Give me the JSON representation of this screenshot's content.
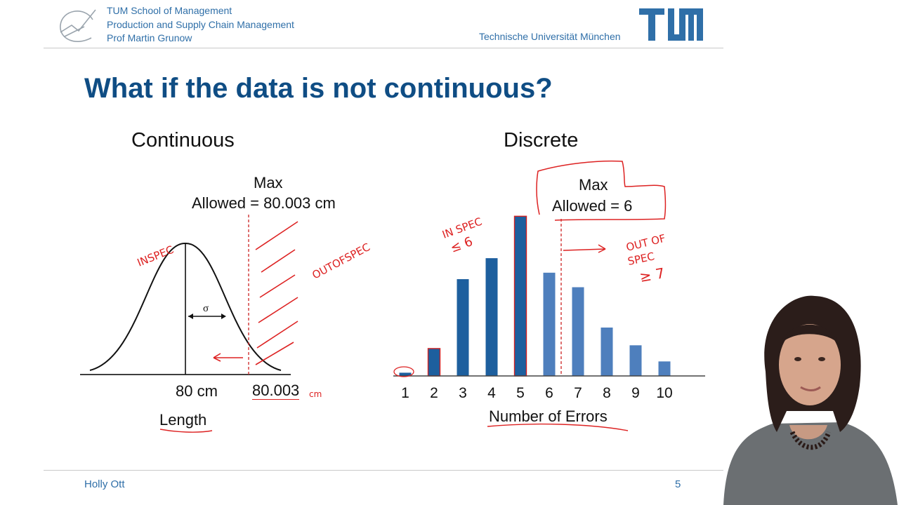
{
  "header": {
    "institution_lines": [
      "TUM School of Management",
      "Production and Supply Chain Management",
      "Prof Martin Grunow"
    ],
    "university": "Technische Universität München",
    "logo_text": "TUM"
  },
  "slide": {
    "title": "What if the data is not continuous?",
    "continuous": {
      "heading": "Continuous",
      "limit_label_1": "Max",
      "limit_label_2": "Allowed = 80.003 cm",
      "sigma": "σ",
      "tick_mean": "80 cm",
      "tick_limit": "80.003",
      "axis_label": "Length",
      "annot_in_spec": "INSPEC",
      "annot_out_spec": "OUTOFSPEC",
      "annot_unit": "cm"
    },
    "discrete": {
      "heading": "Discrete",
      "limit_label_1": "Max",
      "limit_label_2": "Allowed = 6",
      "axis_label": "Number of Errors",
      "annot_in_spec_1": "IN SPEC",
      "annot_in_spec_2": "≤ 6",
      "annot_out_spec_1": "OUT OF",
      "annot_out_spec_2": "SPEC",
      "annot_out_spec_3": "≥ 7"
    }
  },
  "chart_data": {
    "type": "bar",
    "categories": [
      "1",
      "2",
      "3",
      "4",
      "5",
      "6",
      "7",
      "8",
      "9",
      "10"
    ],
    "values": [
      2,
      17,
      60,
      73,
      99,
      64,
      55,
      30,
      19,
      9
    ],
    "xlabel": "Number of Errors",
    "ylabel": "",
    "ylim": [
      0,
      100
    ],
    "limit_line_after_category": "6",
    "colors": {
      "in_spec": "#1d5f9e",
      "out_spec": "#4e7fbd",
      "annotation": "#d22222"
    }
  },
  "footer": {
    "presenter": "Holly Ott",
    "page": "5"
  },
  "colors": {
    "title": "#0f4d84",
    "header_text": "#2f6fa8"
  }
}
